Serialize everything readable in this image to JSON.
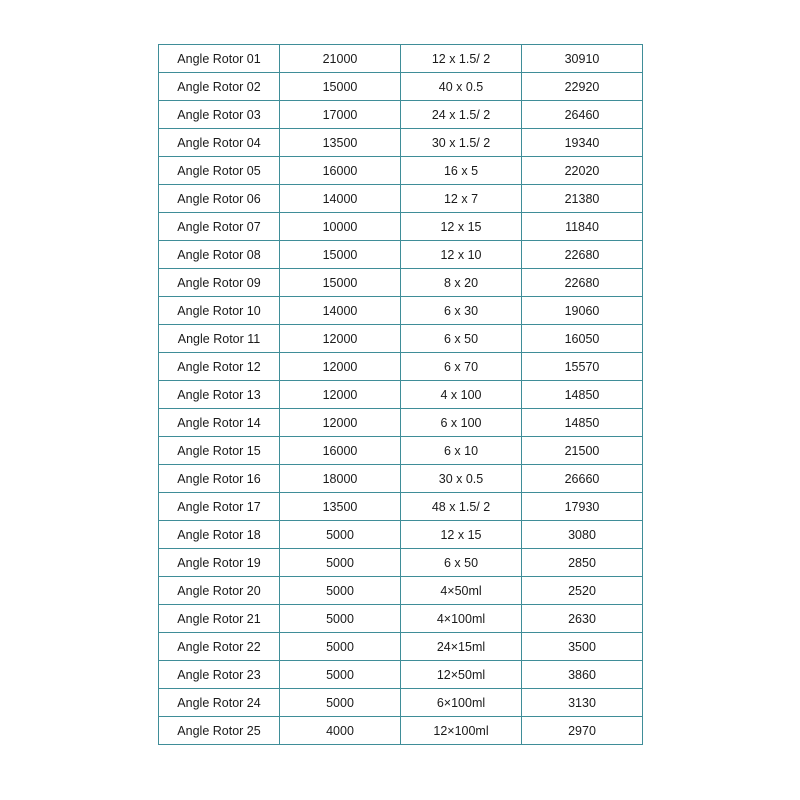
{
  "table": {
    "rows": [
      [
        "Angle Rotor 01",
        "21000",
        "12 x 1.5/ 2",
        "30910"
      ],
      [
        "Angle Rotor 02",
        "15000",
        "40 x 0.5",
        "22920"
      ],
      [
        "Angle Rotor 03",
        "17000",
        "24 x 1.5/ 2",
        "26460"
      ],
      [
        "Angle Rotor 04",
        "13500",
        "30 x 1.5/ 2",
        "19340"
      ],
      [
        "Angle Rotor 05",
        "16000",
        "16 x 5",
        "22020"
      ],
      [
        "Angle Rotor 06",
        "14000",
        "12 x 7",
        "21380"
      ],
      [
        "Angle Rotor 07",
        "10000",
        "12 x 15",
        "11840"
      ],
      [
        "Angle Rotor 08",
        "15000",
        "12 x 10",
        "22680"
      ],
      [
        "Angle Rotor 09",
        "15000",
        "8 x 20",
        "22680"
      ],
      [
        "Angle Rotor 10",
        "14000",
        "6 x 30",
        "19060"
      ],
      [
        "Angle Rotor 11",
        "12000",
        "6 x 50",
        "16050"
      ],
      [
        "Angle Rotor 12",
        "12000",
        "6 x 70",
        "15570"
      ],
      [
        "Angle Rotor 13",
        "12000",
        "4 x 100",
        "14850"
      ],
      [
        "Angle Rotor 14",
        "12000",
        "6 x 100",
        "14850"
      ],
      [
        "Angle Rotor 15",
        "16000",
        "6 x 10",
        "21500"
      ],
      [
        "Angle Rotor 16",
        "18000",
        "30 x 0.5",
        "26660"
      ],
      [
        "Angle Rotor 17",
        "13500",
        "48 x 1.5/ 2",
        "17930"
      ],
      [
        "Angle Rotor 18",
        "5000",
        "12 x 15",
        "3080"
      ],
      [
        "Angle Rotor 19",
        "5000",
        "6 x 50",
        "2850"
      ],
      [
        "Angle Rotor 20",
        "5000",
        "4×50ml",
        "2520"
      ],
      [
        "Angle Rotor 21",
        "5000",
        "4×100ml",
        "2630"
      ],
      [
        "Angle Rotor 22",
        "5000",
        "24×15ml",
        "3500"
      ],
      [
        "Angle Rotor 23",
        "5000",
        "12×50ml",
        "3860"
      ],
      [
        "Angle Rotor 24",
        "5000",
        "6×100ml",
        "3130"
      ],
      [
        "Angle Rotor 25",
        "4000",
        "12×100ml",
        "2970"
      ]
    ]
  },
  "colors": {
    "border": "#3f8d98",
    "text": "#1a1a1a"
  }
}
